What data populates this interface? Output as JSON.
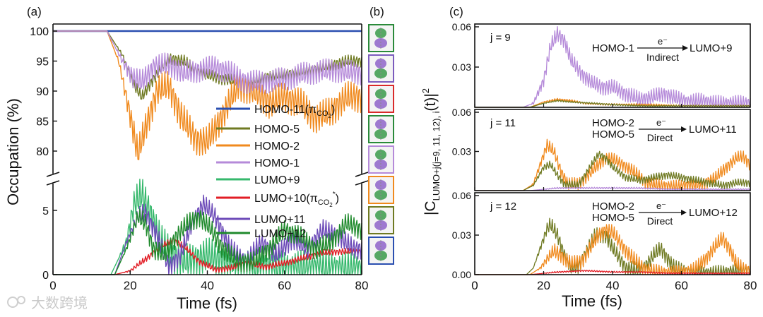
{
  "panel_labels": {
    "a": "(a)",
    "b": "(b)",
    "c": "(c)"
  },
  "watermark": "大数跨境",
  "colors": {
    "homo11": "#2a4fb0",
    "homo5": "#6f7a22",
    "homo2": "#f08a1e",
    "homo1": "#b58ad9",
    "lumo9": "#36b86c",
    "lumo10": "#e21d25",
    "lumo11": "#6c4ab8",
    "lumo12": "#1f8a2c"
  },
  "orbital_boxes": [
    {
      "name": "homo-11-orbital",
      "border": "#2a8a3a"
    },
    {
      "name": "homo-5-orbital",
      "border": "#7b5bbd"
    },
    {
      "name": "homo-2-orbital",
      "border": "#d92a2a"
    },
    {
      "name": "homo-1-orbital",
      "border": "#2a8a3a"
    },
    {
      "name": "lumo-9-orbital",
      "border": "#b58ad9"
    },
    {
      "name": "lumo-10-orbital",
      "border": "#f08a1e"
    },
    {
      "name": "lumo-11-orbital",
      "border": "#6f7a22"
    },
    {
      "name": "lumo-12-orbital",
      "border": "#2a4fb0"
    }
  ],
  "chart_data": [
    {
      "id": "a",
      "type": "line",
      "xlabel": "Time (fs)",
      "ylabel": "Occupation (%)",
      "x_ticks": [
        "0",
        "20",
        "40",
        "60",
        "80"
      ],
      "xlim": [
        0,
        80
      ],
      "axis_break": "broken y-axis between 5 and 80",
      "upper": {
        "ylim": [
          77,
          101
        ],
        "y_ticks": [
          "80",
          "85",
          "90",
          "95",
          "100"
        ]
      },
      "lower": {
        "ylim": [
          0,
          7.5
        ],
        "y_ticks": [
          "0",
          "5"
        ]
      },
      "legend": [
        {
          "name": "HOMO-11",
          "sub": "CO",
          "subsub": "2",
          "prefix": "(π",
          "suffix": ")"
        },
        {
          "name": "HOMO-5"
        },
        {
          "name": "HOMO-2"
        },
        {
          "name": "HOMO-1"
        },
        {
          "name": "LUMO+9"
        },
        {
          "name": "LUMO+10",
          "sub": "CO",
          "subsub": "2",
          "prefix": "(π",
          "suffix": ")",
          "sup": "*"
        },
        {
          "name": "LUMO+11"
        },
        {
          "name": "LUMO+12"
        }
      ],
      "series": [
        {
          "name": "HOMO-11",
          "color_key": "homo11",
          "region": "upper",
          "amp": 0,
          "x": [
            0,
            80
          ],
          "y": [
            100,
            100
          ]
        },
        {
          "name": "HOMO-5",
          "color_key": "homo5",
          "region": "upper",
          "amp": 1.0,
          "x": [
            0,
            14,
            18,
            21,
            23,
            26,
            30,
            34,
            38,
            44,
            50,
            56,
            62,
            70,
            76,
            80
          ],
          "y": [
            100,
            100,
            96,
            91,
            89,
            92,
            95.5,
            95,
            93,
            92,
            91.5,
            92.5,
            93,
            94,
            95,
            95
          ]
        },
        {
          "name": "HOMO-2",
          "color_key": "homo2",
          "region": "upper",
          "amp": 2.6,
          "x": [
            0,
            14,
            17,
            20,
            22,
            24,
            27,
            30,
            33,
            37,
            40,
            44,
            48,
            52,
            56,
            60,
            64,
            68,
            72,
            76,
            80
          ],
          "y": [
            100,
            100,
            95,
            86,
            79.5,
            84,
            90,
            91,
            86,
            82,
            81.5,
            86,
            91,
            90,
            88,
            89,
            88,
            85.5,
            86.5,
            89,
            89
          ]
        },
        {
          "name": "HOMO-1",
          "color_key": "homo1",
          "region": "upper",
          "amp": 2.0,
          "x": [
            0,
            14,
            18,
            21,
            23,
            26,
            30,
            34,
            38,
            42,
            46,
            50,
            54,
            60,
            66,
            72,
            80
          ],
          "y": [
            100,
            100,
            95,
            92,
            91.5,
            94,
            94.5,
            93,
            93.5,
            94,
            93,
            91.5,
            91.5,
            92,
            93,
            93.5,
            93
          ]
        },
        {
          "name": "LUMO+9",
          "color_key": "lumo9",
          "region": "lower",
          "amp": 1.4,
          "x": [
            0,
            15,
            19,
            21,
            23,
            25,
            28,
            31,
            35,
            40,
            45,
            50,
            55,
            60,
            65,
            70,
            75,
            80
          ],
          "y": [
            0,
            0,
            2.5,
            5.5,
            6.2,
            5.0,
            2.5,
            1.5,
            1.0,
            1.5,
            1.0,
            0.8,
            0.6,
            0.5,
            0.5,
            0.5,
            0.4,
            0.4
          ]
        },
        {
          "name": "LUMO+10",
          "color_key": "lumo10",
          "region": "lower",
          "amp": 0.25,
          "x": [
            0,
            16,
            20,
            24,
            28,
            31,
            34,
            38,
            42,
            46,
            50,
            55,
            60,
            65,
            70,
            75,
            80
          ],
          "y": [
            0,
            0,
            0.3,
            1.2,
            2.2,
            2.7,
            2.2,
            1.0,
            0.4,
            0.5,
            0.9,
            0.6,
            0.9,
            1.3,
            1.7,
            1.8,
            1.8
          ]
        },
        {
          "name": "LUMO+11",
          "color_key": "lumo11",
          "region": "lower",
          "amp": 0.8,
          "x": [
            0,
            16,
            19,
            22,
            24,
            27,
            30,
            33,
            36,
            39,
            42,
            46,
            50,
            54,
            58,
            62,
            66,
            70,
            74,
            78,
            80
          ],
          "y": [
            0,
            0,
            2.5,
            4.5,
            4.8,
            3.0,
            0.6,
            1.5,
            4.0,
            5.5,
            4.5,
            2.0,
            1.0,
            2.5,
            1.5,
            2.8,
            2.0,
            3.5,
            3.0,
            2.0,
            2.0
          ]
        },
        {
          "name": "LUMO+12",
          "color_key": "lumo12",
          "region": "lower",
          "amp": 0.8,
          "x": [
            0,
            16,
            19,
            22,
            24,
            26,
            29,
            32,
            35,
            38,
            41,
            44,
            48,
            52,
            56,
            60,
            64,
            68,
            72,
            76,
            80
          ],
          "y": [
            0,
            0,
            2.0,
            4.5,
            4.0,
            2.0,
            1.5,
            3.0,
            4.0,
            4.5,
            3.5,
            2.0,
            1.0,
            1.0,
            2.0,
            3.5,
            3.0,
            2.0,
            2.5,
            4.0,
            3.5
          ]
        }
      ]
    },
    {
      "id": "c",
      "type": "line",
      "xlabel": "Time (fs)",
      "ylabel": {
        "base": "|C",
        "sub": "LUMO+j(j=9, 11, 12), i",
        "tail": "(t)|",
        "sup": "2"
      },
      "x_ticks": [
        "0",
        "20",
        "40",
        "60",
        "80"
      ],
      "xlim": [
        0,
        80
      ],
      "subplots": [
        {
          "label": "j = 9",
          "ylim": [
            0,
            0.063
          ],
          "y_ticks": [
            "0.06",
            "0.03"
          ],
          "annotation": {
            "from": [
              "HOMO-1"
            ],
            "to": "LUMO+9",
            "electron": "e⁻",
            "mode": "Indirect"
          },
          "series": [
            {
              "name": "HOMO-1 → LUMO+9",
              "color_key": "homo1",
              "amp": 0.006,
              "x": [
                0,
                14,
                17,
                20,
                22,
                24,
                26,
                28,
                31,
                34,
                37,
                40,
                44,
                48,
                52,
                55,
                58,
                62,
                66,
                70,
                75,
                80
              ],
              "y": [
                0,
                0,
                0.003,
                0.02,
                0.045,
                0.055,
                0.05,
                0.035,
                0.025,
                0.018,
                0.015,
                0.015,
                0.01,
                0.006,
                0.008,
                0.01,
                0.007,
                0.004,
                0.005,
                0.003,
                0.003,
                0.003
              ]
            },
            {
              "name": "HOMO-2 → LUMO+9",
              "color_key": "homo2",
              "amp": 0.0008,
              "x": [
                0,
                16,
                20,
                24,
                28,
                32,
                40,
                50,
                60,
                70,
                80
              ],
              "y": [
                0,
                0,
                0.004,
                0.006,
                0.005,
                0.003,
                0.002,
                0.002,
                0.001,
                0.001,
                0.001
              ]
            },
            {
              "name": "HOMO-5 → LUMO+9",
              "color_key": "homo5",
              "amp": 0.0006,
              "x": [
                0,
                16,
                20,
                24,
                28,
                34,
                40,
                50,
                60,
                70,
                80
              ],
              "y": [
                0,
                0,
                0.003,
                0.005,
                0.004,
                0.003,
                0.002,
                0.001,
                0.001,
                0.001,
                0.001
              ]
            }
          ]
        },
        {
          "label": "j = 11",
          "ylim": [
            0,
            0.063
          ],
          "y_ticks": [
            "0.06",
            "0.03"
          ],
          "annotation": {
            "from": [
              "HOMO-2",
              "HOMO-5"
            ],
            "to": "LUMO+11",
            "electron": "e⁻",
            "mode": "Direct"
          },
          "series": [
            {
              "name": "HOMO-2 → LUMO+11",
              "color_key": "homo2",
              "amp": 0.005,
              "x": [
                0,
                14,
                17,
                19,
                21,
                23,
                25,
                27,
                30,
                33,
                36,
                38,
                40,
                43,
                46,
                50,
                54,
                58,
                62,
                66,
                70,
                73,
                76,
                78,
                80
              ],
              "y": [
                0,
                0,
                0.005,
                0.02,
                0.035,
                0.03,
                0.015,
                0.005,
                0.005,
                0.012,
                0.02,
                0.025,
                0.024,
                0.02,
                0.015,
                0.006,
                0.004,
                0.003,
                0.004,
                0.005,
                0.01,
                0.018,
                0.025,
                0.026,
                0.02
              ]
            },
            {
              "name": "HOMO-5 → LUMO+11",
              "color_key": "homo5",
              "amp": 0.003,
              "x": [
                0,
                14,
                17,
                20,
                22,
                24,
                26,
                30,
                34,
                36,
                38,
                40,
                44,
                48,
                52,
                56,
                60,
                64,
                68,
                72,
                76,
                80
              ],
              "y": [
                0,
                0,
                0.004,
                0.018,
                0.02,
                0.012,
                0.005,
                0.004,
                0.02,
                0.028,
                0.025,
                0.018,
                0.01,
                0.008,
                0.01,
                0.012,
                0.01,
                0.008,
                0.006,
                0.004,
                0.006,
                0.006
              ]
            },
            {
              "name": "LUMO+11 background",
              "color_key": "homo1",
              "amp": 0.0006,
              "x": [
                0,
                16,
                24,
                32,
                40,
                48,
                56,
                64,
                72,
                80
              ],
              "y": [
                0,
                0,
                0.002,
                0.002,
                0.002,
                0.002,
                0.001,
                0.001,
                0.001,
                0.001
              ]
            }
          ]
        },
        {
          "label": "j = 12",
          "ylim": [
            0,
            0.063
          ],
          "y_ticks": [
            "0.06",
            "0.03",
            "0.00"
          ],
          "annotation": {
            "from": [
              "HOMO-2",
              "HOMO-5"
            ],
            "to": "LUMO+12",
            "electron": "e⁻",
            "mode": "Direct"
          },
          "series": [
            {
              "name": "HOMO-5 → LUMO+12",
              "color_key": "homo5",
              "amp": 0.006,
              "x": [
                0,
                15,
                17,
                19,
                21,
                22,
                24,
                26,
                28,
                30,
                33,
                35,
                38,
                40,
                44,
                48,
                50,
                52,
                54,
                56,
                58,
                62,
                66,
                70,
                74,
                78,
                80
              ],
              "y": [
                0,
                0,
                0.005,
                0.02,
                0.035,
                0.038,
                0.03,
                0.015,
                0.005,
                0.006,
                0.02,
                0.03,
                0.03,
                0.02,
                0.005,
                0.003,
                0.008,
                0.015,
                0.02,
                0.012,
                0.005,
                0.002,
                0.001,
                0.001,
                0.002,
                0.003,
                0.003
              ]
            },
            {
              "name": "HOMO-2 → LUMO+12",
              "color_key": "homo2",
              "amp": 0.006,
              "x": [
                0,
                16,
                19,
                21,
                23,
                25,
                28,
                31,
                34,
                36,
                38,
                40,
                42,
                44,
                46,
                49,
                52,
                56,
                60,
                64,
                67,
                70,
                72,
                74,
                76,
                78,
                80
              ],
              "y": [
                0,
                0,
                0.005,
                0.012,
                0.018,
                0.015,
                0.008,
                0.01,
                0.022,
                0.03,
                0.034,
                0.032,
                0.025,
                0.018,
                0.012,
                0.005,
                0.002,
                0.001,
                0.001,
                0.004,
                0.012,
                0.022,
                0.028,
                0.02,
                0.008,
                0.004,
                0.003
              ]
            },
            {
              "name": "LUMO+12 background",
              "color_key": "lumo10",
              "amp": 0.0006,
              "x": [
                0,
                16,
                24,
                32,
                40,
                48,
                56,
                64,
                72,
                80
              ],
              "y": [
                0,
                0,
                0.002,
                0.003,
                0.002,
                0.002,
                0.001,
                0.001,
                0.001,
                0.001
              ]
            }
          ]
        }
      ]
    }
  ]
}
